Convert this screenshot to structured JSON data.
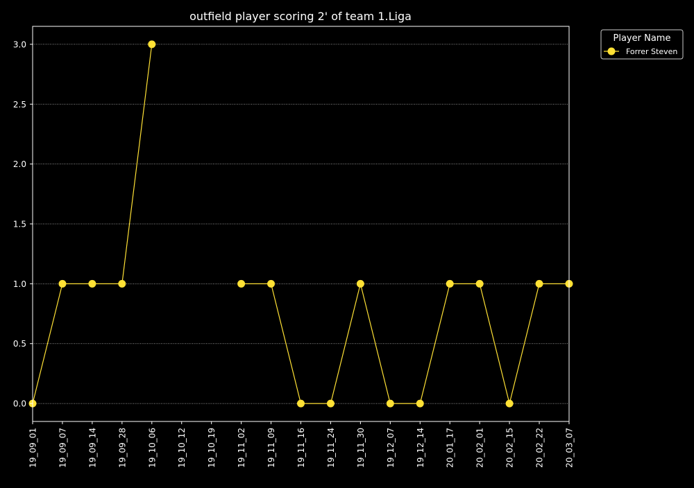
{
  "chart_data": {
    "type": "line",
    "title": "outfield player scoring 2' of team 1.Liga",
    "xlabel": "",
    "ylabel": "",
    "categories": [
      "19_09_01",
      "19_09_07",
      "19_09_14",
      "19_09_28",
      "19_10_06",
      "19_10_12",
      "19_10_19",
      "19_11_02",
      "19_11_09",
      "19_11_16",
      "19_11_24",
      "19_11_30",
      "19_12_07",
      "19_12_14",
      "20_01_17",
      "20_02_01",
      "20_02_15",
      "20_02_22",
      "20_03_07"
    ],
    "series": [
      {
        "name": "Forrer Steven",
        "values": [
          0,
          1,
          1,
          1,
          3,
          null,
          null,
          1,
          1,
          0,
          0,
          1,
          0,
          0,
          1,
          1,
          0,
          1,
          1
        ]
      }
    ],
    "ylim": [
      -0.15,
      3.15
    ],
    "yticks": [
      "0.0",
      "0.5",
      "1.0",
      "1.5",
      "2.0",
      "2.5",
      "3.0"
    ],
    "grid": "horizontal dotted",
    "legend": {
      "title": "Player Name",
      "placement": "outside top-right"
    },
    "colors": {
      "background": "#000000",
      "axes": "#ffffff",
      "grid": "#bbbbbb",
      "series": "#ffe135",
      "text": "#ffffff"
    }
  }
}
